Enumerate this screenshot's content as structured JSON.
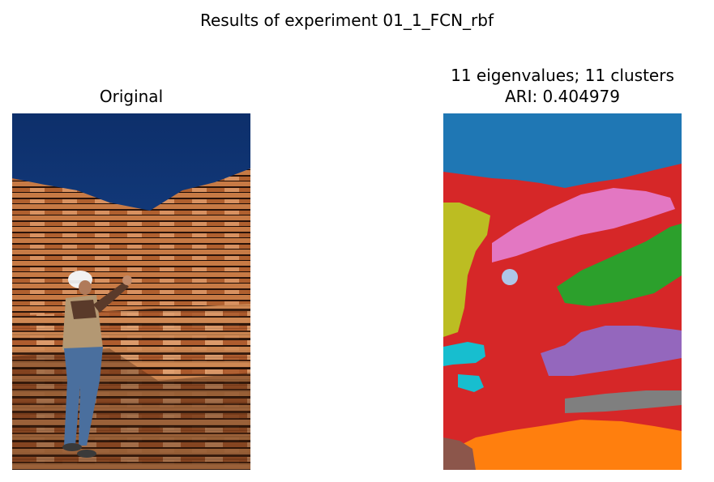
{
  "figure": {
    "suptitle": "Results of experiment 01_1_FCN_rbf"
  },
  "panels": {
    "left": {
      "title": "Original",
      "image": "photo of a worker in hard hat and vest standing on stacked lumber boards under a blue sky"
    },
    "right": {
      "title_line1": "11 eigenvalues; 11 clusters",
      "title_line2": "ARI: 0.404979",
      "image": "color-coded segmentation map with 11 clusters"
    }
  },
  "colors": {
    "sky": "#1f77b4",
    "red": "#d62728",
    "pink": "#e377c2",
    "green": "#2ca02c",
    "purple": "#9467bd",
    "gray": "#7f7f7f",
    "orange": "#ff7f0e",
    "olive": "#bcbd22",
    "cyan": "#17becf",
    "lightblue": "#aec7e8",
    "brown": "#8c564b"
  }
}
